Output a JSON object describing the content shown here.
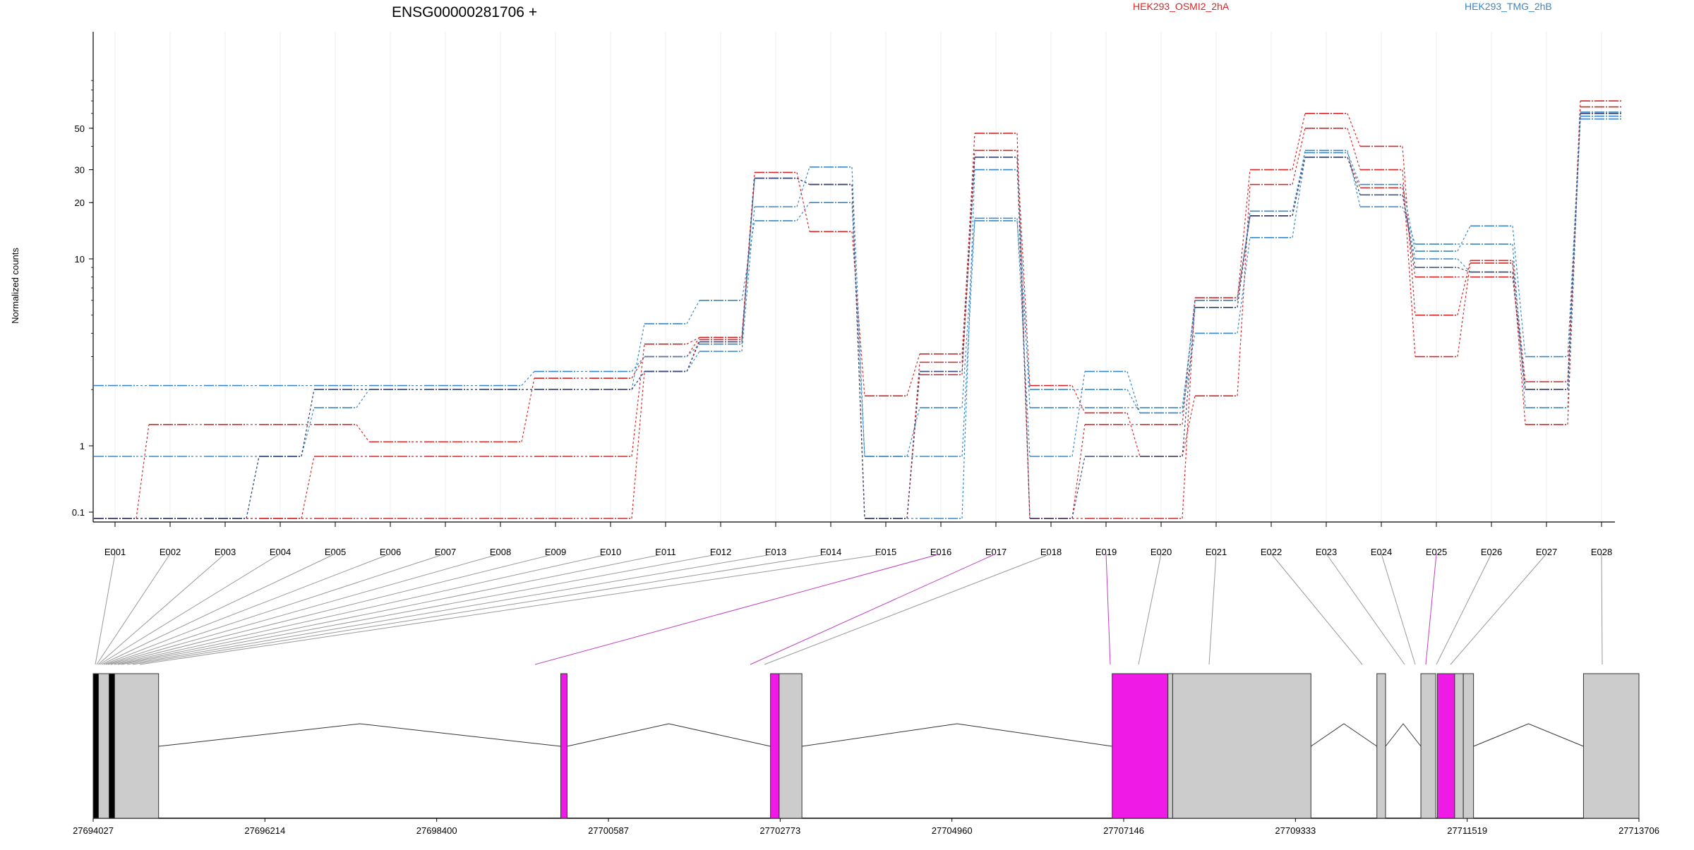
{
  "chart_data": {
    "type": "line",
    "title": "ENSG00000281706 +",
    "ylabel": "Normalized counts",
    "xlabel": "",
    "y_scale": "log",
    "y_ticks": [
      0.1,
      1,
      10,
      20,
      30,
      50
    ],
    "legend": [
      {
        "name": "HEK293_OSMI2_2hA",
        "color": "#d62728"
      },
      {
        "name": "HEK293_TMG_2hB",
        "color": "#3a87c8"
      }
    ],
    "legend_placement": "top",
    "categories": [
      "E001",
      "E002",
      "E003",
      "E004",
      "E005",
      "E006",
      "E007",
      "E008",
      "E009",
      "E010",
      "E011",
      "E012",
      "E013",
      "E014",
      "E015",
      "E016",
      "E017",
      "E018",
      "E019",
      "E020",
      "E021",
      "E022",
      "E023",
      "E024",
      "E025",
      "E026",
      "E027",
      "E028"
    ],
    "series": [
      {
        "group": "red",
        "color": "#d62728",
        "values": [
          0.08,
          0.08,
          0.08,
          0.08,
          0.08,
          0.08,
          0.08,
          0.08,
          0.08,
          0.08,
          2.5,
          3.7,
          27,
          25,
          0.08,
          2.8,
          47,
          0.08,
          0.08,
          0.08,
          6,
          30,
          60,
          40,
          5,
          9.8,
          2.2,
          70
        ]
      },
      {
        "group": "red",
        "color": "#d62728",
        "values": [
          0.08,
          1.3,
          1.3,
          1.3,
          1.3,
          1.05,
          1.05,
          1.05,
          2.3,
          2.3,
          3.0,
          3.8,
          29,
          14,
          1.85,
          3.1,
          38,
          2.1,
          1.5,
          0.85,
          1.85,
          25,
          50,
          30,
          3,
          9.5,
          1.3,
          65
        ]
      },
      {
        "group": "red",
        "color": "#d62728",
        "values": [
          0.08,
          0.08,
          0.08,
          0.08,
          0.85,
          0.85,
          0.85,
          0.85,
          0.85,
          0.85,
          3.5,
          3.8,
          27,
          25,
          0.08,
          2.4,
          35,
          0.08,
          1.3,
          1.3,
          6.2,
          17,
          35,
          24,
          8,
          8,
          2.0,
          60
        ]
      },
      {
        "group": "blue",
        "color": "#3a87c8",
        "values": [
          2.1,
          2.1,
          2.1,
          2.1,
          2.1,
          2.1,
          2.1,
          2.1,
          2.5,
          2.5,
          3.0,
          3.5,
          27,
          25,
          0.08,
          0.08,
          30,
          1.6,
          1.6,
          1.6,
          5.5,
          18,
          37,
          25,
          11,
          15,
          3.0,
          58
        ]
      },
      {
        "group": "blue",
        "color": "#3a87c8",
        "values": [
          0.85,
          0.85,
          0.85,
          0.85,
          1.6,
          2.0,
          2.0,
          2.0,
          2.0,
          2.0,
          2.5,
          3.2,
          19,
          31,
          0.85,
          1.6,
          16.5,
          0.85,
          2.5,
          1.5,
          6,
          17,
          38,
          19,
          12,
          12,
          1.6,
          61
        ]
      },
      {
        "group": "blue",
        "color": "#3a87c8",
        "values": [
          0.08,
          0.08,
          0.08,
          0.85,
          2.0,
          2.0,
          2.0,
          2.0,
          2.0,
          2.0,
          4.5,
          6,
          16,
          20,
          0.85,
          0.85,
          16,
          2.0,
          2.0,
          1.5,
          4,
          13,
          35,
          22,
          10,
          8.5,
          2.0,
          56
        ]
      },
      {
        "group": "dark",
        "color": "#3b4a78",
        "values": [
          0.08,
          0.08,
          0.08,
          0.85,
          2.0,
          2.0,
          2.0,
          2.0,
          2.0,
          2.0,
          2.5,
          3.6,
          27,
          25,
          0.08,
          2.5,
          35,
          0.08,
          0.85,
          0.85,
          5.5,
          17,
          35,
          22,
          9,
          8.5,
          2.0,
          60
        ]
      }
    ],
    "exon_mapping_colors": {
      "plain": "#999999",
      "highlight": "#c040c0"
    },
    "highlighted_exons": [
      "E016",
      "E017",
      "E019",
      "E025"
    ],
    "gene_model": {
      "fill_plain": "#cccccc",
      "fill_highlight": "#f01ae6",
      "coordinates": [
        "27694027",
        "27696214",
        "27698400",
        "27700587",
        "27702773",
        "27704960",
        "27707146",
        "27709333",
        "27711519",
        "27713706"
      ],
      "start": 27694027,
      "end": 27713706,
      "exons": [
        {
          "start": 27694027,
          "end": 27694095,
          "color": "black"
        },
        {
          "start": 27694095,
          "end": 27694230,
          "color": "plain"
        },
        {
          "start": 27694230,
          "end": 27694300,
          "color": "black"
        },
        {
          "start": 27694300,
          "end": 27694860,
          "color": "plain"
        },
        {
          "start": 27699980,
          "end": 27700060,
          "color": "highlight"
        },
        {
          "start": 27702650,
          "end": 27702760,
          "color": "highlight"
        },
        {
          "start": 27702760,
          "end": 27703050,
          "color": "plain"
        },
        {
          "start": 27707000,
          "end": 27707710,
          "color": "highlight"
        },
        {
          "start": 27707710,
          "end": 27707770,
          "color": "plain"
        },
        {
          "start": 27707770,
          "end": 27709530,
          "color": "plain"
        },
        {
          "start": 27710370,
          "end": 27710480,
          "color": "plain"
        },
        {
          "start": 27710930,
          "end": 27711120,
          "color": "plain"
        },
        {
          "start": 27711140,
          "end": 27711360,
          "color": "highlight"
        },
        {
          "start": 27711360,
          "end": 27711470,
          "color": "plain"
        },
        {
          "start": 27711470,
          "end": 27711600,
          "color": "plain"
        },
        {
          "start": 27713000,
          "end": 27713706,
          "color": "plain"
        }
      ],
      "introns": [
        {
          "from": 27694860,
          "to": 27699980
        },
        {
          "from": 27700060,
          "to": 27702650
        },
        {
          "from": 27703050,
          "to": 27707000
        },
        {
          "from": 27709530,
          "to": 27710370
        },
        {
          "from": 27710480,
          "to": 27710930
        },
        {
          "from": 27711600,
          "to": 27713000
        }
      ],
      "exon_positions": [
        27694027,
        27694027,
        27694027,
        27694027,
        27694027,
        27694027,
        27694027,
        27694027,
        27694027,
        27694027,
        27694027,
        27694027,
        27694027,
        27694027,
        27694027,
        27694027,
        27694027,
        27694027,
        27694027,
        27694027,
        27694027,
        27694027,
        27694027,
        27694027,
        27694027,
        27694027,
        27694027,
        27694027
      ]
    }
  }
}
